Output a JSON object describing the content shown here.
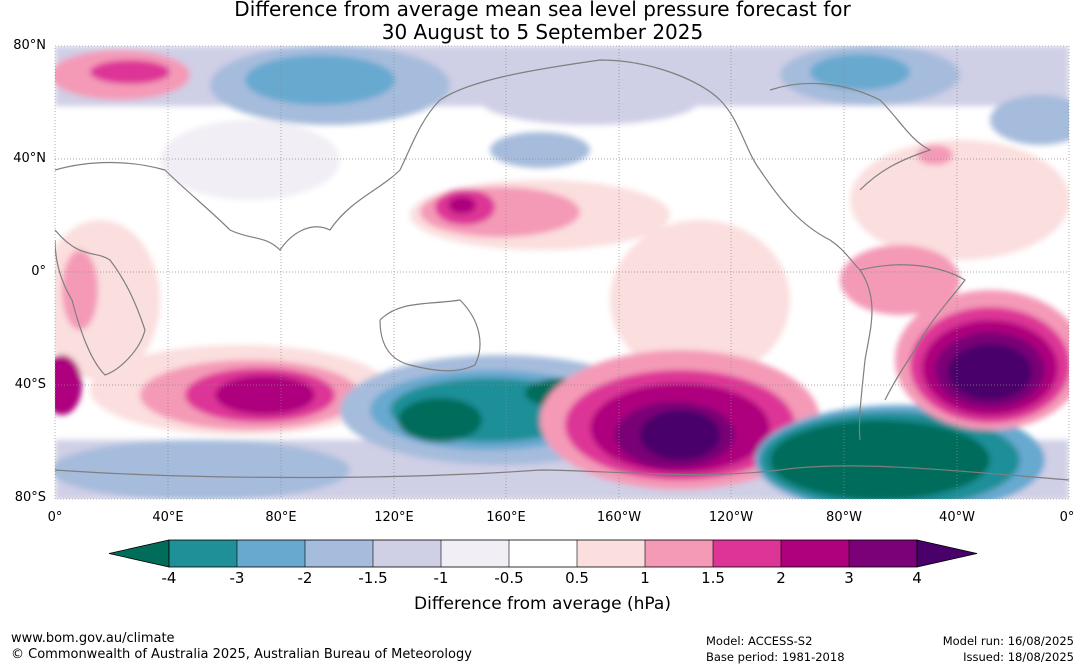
{
  "title_line1": "Difference from average mean sea level pressure forecast for",
  "title_line2": "30 August to 5 September 2025",
  "lat_labels": [
    "80°N",
    "40°N",
    "0°",
    "40°S",
    "80°S"
  ],
  "lon_labels": [
    "0°",
    "40°E",
    "80°E",
    "120°E",
    "160°E",
    "160°W",
    "120°W",
    "80°W",
    "40°W",
    "0°"
  ],
  "colorbar": {
    "title": "Difference from average (hPa)",
    "tick_labels": [
      "-4",
      "-3",
      "-2",
      "-1.5",
      "-1",
      "-0.5",
      "0.5",
      "1",
      "1.5",
      "2",
      "3",
      "4"
    ],
    "colors": [
      "#006d5b",
      "#1f8f98",
      "#68a9d0",
      "#a6bcdc",
      "#cfcfe6",
      "#f1eef5",
      "#ffffff",
      "#fbdede",
      "#f49ab7",
      "#dd3497",
      "#ae017e",
      "#7a0177",
      "#49006a"
    ]
  },
  "footer": {
    "website": "www.bom.gov.au/climate",
    "copyright": "© Commonwealth of Australia 2025, Australian Bureau of Meteorology",
    "model": "Model: ACCESS-S2",
    "base_period": "Base period: 1981-2018",
    "model_run": "Model run: 16/08/2025",
    "issued": "Issued: 18/08/2025"
  }
}
